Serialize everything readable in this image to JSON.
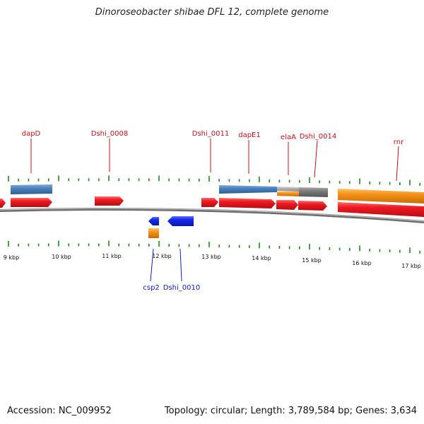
{
  "title": "Dinoroseobacter shibae DFL 12, complete genome",
  "footer": {
    "accession": "Accession: NC_009952",
    "summary": "Topology: circular; Length: 3,789,584 bp; Genes: 3,634"
  },
  "colors": {
    "forward_gene": "#e8141b",
    "reverse_gene": "#1026e8",
    "steelblue_feature": "#4a86c0",
    "orange_feature": "#f39017",
    "gray_feature": "#7a7a7a",
    "light_gray_feature": "#aaaaaa",
    "tick": "#1a8a1a",
    "label_forward": "#c4101a",
    "label_reverse": "#1020c0",
    "backbone": "#808080"
  },
  "scale_labels": [
    "9 kbp",
    "10 kbp",
    "11 kbp",
    "12 kbp",
    "13 kbp",
    "14 kbp",
    "15 kbp",
    "16 kbp",
    "17 kbp"
  ],
  "gene_labels_forward": [
    "dapD",
    "Dshi_0008",
    "Dshi_0011",
    "dapE1",
    "elaA",
    "Dshi_0014",
    "rnr"
  ],
  "gene_labels_reverse": [
    "csp2",
    "Dshi_0010"
  ]
}
